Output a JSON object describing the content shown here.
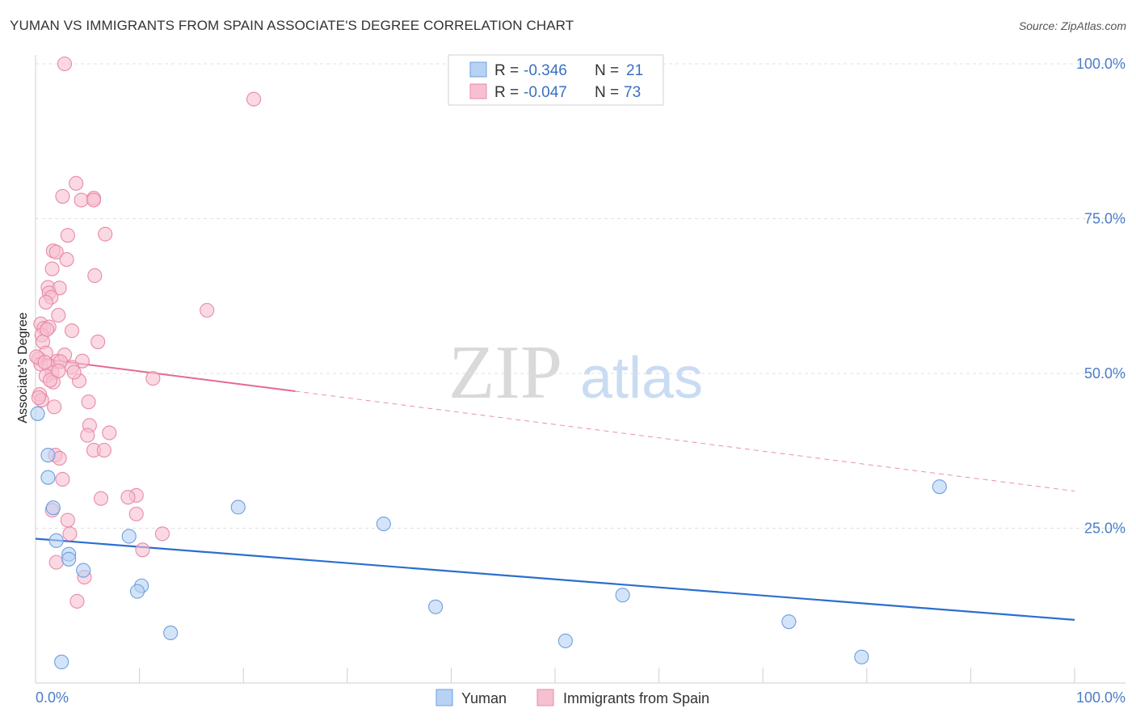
{
  "header": {
    "title": "YUMAN VS IMMIGRANTS FROM SPAIN ASSOCIATE'S DEGREE CORRELATION CHART",
    "source": "Source: ZipAtlas.com"
  },
  "watermark": {
    "zip": "ZIP",
    "atlas": "atlas"
  },
  "colors": {
    "blue_fill": "#b8d2f4",
    "blue_stroke": "#6d9fdf",
    "blue_line": "#2b6fcd",
    "pink_fill": "#f7c0d1",
    "pink_stroke": "#e88aa8",
    "pink_line": "#e46a93",
    "grid": "#e0e0e0",
    "axis": "#cfcfcf"
  },
  "chart_data": {
    "type": "scatter",
    "title": "YUMAN VS IMMIGRANTS FROM SPAIN ASSOCIATE'S DEGREE CORRELATION CHART",
    "xlabel": "",
    "ylabel": "Associate's Degree",
    "xlim": [
      0,
      100
    ],
    "ylim": [
      0,
      100
    ],
    "x_tick_labels": {
      "min": "0.0%",
      "max": "100.0%"
    },
    "y_ticks": [
      {
        "value": 25,
        "label": "25.0%"
      },
      {
        "value": 50,
        "label": "50.0%"
      },
      {
        "value": 75,
        "label": "75.0%"
      },
      {
        "value": 100,
        "label": "100.0%"
      }
    ],
    "grid": true,
    "legend": {
      "position": "top-center",
      "entries": [
        {
          "r_label": "R = ",
          "r_value": "-0.346",
          "n_label": "N = ",
          "n_value": "21"
        },
        {
          "r_label": "R = ",
          "r_value": "-0.047",
          "n_label": "N = ",
          "n_value": "73"
        }
      ]
    },
    "series": [
      {
        "name": "Yuman",
        "color": "#b8d2f4",
        "trend": {
          "x0": 0,
          "y0": 23.3,
          "x1": 100,
          "y1": 10.2,
          "solid_until": 100
        },
        "points": [
          [
            0.2,
            43.5
          ],
          [
            1.2,
            36.8
          ],
          [
            1.2,
            33.2
          ],
          [
            1.7,
            28.3
          ],
          [
            2.0,
            23.0
          ],
          [
            3.2,
            20.8
          ],
          [
            3.2,
            20.0
          ],
          [
            4.6,
            18.2
          ],
          [
            2.5,
            3.4
          ],
          [
            9.0,
            23.7
          ],
          [
            10.2,
            15.7
          ],
          [
            9.8,
            14.8
          ],
          [
            13.0,
            8.1
          ],
          [
            19.5,
            28.4
          ],
          [
            33.5,
            25.7
          ],
          [
            38.5,
            12.3
          ],
          [
            51.0,
            6.8
          ],
          [
            56.5,
            14.2
          ],
          [
            72.5,
            9.9
          ],
          [
            79.5,
            4.2
          ],
          [
            87.0,
            31.7
          ]
        ]
      },
      {
        "name": "Immigrants from Spain",
        "color": "#f7c0d1",
        "trend": {
          "x0": 0,
          "y0": 52.5,
          "x1": 100,
          "y1": 31.0,
          "solid_until": 25
        },
        "points": [
          [
            2.8,
            100.0
          ],
          [
            21.0,
            94.3
          ],
          [
            3.9,
            80.7
          ],
          [
            2.6,
            78.6
          ],
          [
            4.4,
            78.0
          ],
          [
            5.6,
            78.3
          ],
          [
            5.6,
            78.0
          ],
          [
            3.1,
            72.3
          ],
          [
            6.7,
            72.5
          ],
          [
            1.7,
            69.8
          ],
          [
            2.0,
            69.6
          ],
          [
            3.0,
            68.4
          ],
          [
            1.6,
            66.9
          ],
          [
            5.7,
            65.8
          ],
          [
            1.2,
            63.9
          ],
          [
            2.3,
            63.8
          ],
          [
            1.3,
            63.0
          ],
          [
            1.5,
            62.3
          ],
          [
            1.0,
            61.5
          ],
          [
            16.5,
            60.2
          ],
          [
            2.2,
            59.4
          ],
          [
            0.5,
            58.0
          ],
          [
            0.8,
            57.3
          ],
          [
            1.3,
            57.5
          ],
          [
            3.5,
            56.9
          ],
          [
            0.6,
            56.2
          ],
          [
            0.7,
            55.1
          ],
          [
            6.0,
            55.1
          ],
          [
            2.1,
            52.0
          ],
          [
            2.8,
            53.0
          ],
          [
            1.0,
            53.3
          ],
          [
            0.3,
            52.4
          ],
          [
            0.5,
            51.5
          ],
          [
            1.3,
            51.3
          ],
          [
            2.4,
            51.9
          ],
          [
            4.5,
            52.0
          ],
          [
            3.5,
            51.0
          ],
          [
            1.6,
            50.1
          ],
          [
            1.0,
            49.6
          ],
          [
            11.3,
            49.2
          ],
          [
            1.7,
            48.6
          ],
          [
            4.2,
            48.8
          ],
          [
            0.4,
            46.6
          ],
          [
            0.6,
            45.7
          ],
          [
            5.1,
            45.4
          ],
          [
            1.8,
            44.6
          ],
          [
            5.2,
            41.6
          ],
          [
            7.1,
            40.4
          ],
          [
            5.0,
            40.0
          ],
          [
            5.6,
            37.6
          ],
          [
            6.6,
            37.6
          ],
          [
            1.9,
            36.8
          ],
          [
            2.3,
            36.3
          ],
          [
            2.6,
            32.9
          ],
          [
            9.7,
            30.3
          ],
          [
            6.3,
            29.8
          ],
          [
            8.9,
            30.0
          ],
          [
            1.6,
            27.9
          ],
          [
            3.1,
            26.3
          ],
          [
            9.7,
            27.3
          ],
          [
            3.3,
            24.1
          ],
          [
            12.2,
            24.1
          ],
          [
            10.3,
            21.5
          ],
          [
            2.0,
            19.5
          ],
          [
            4.7,
            17.1
          ],
          [
            4.0,
            13.2
          ],
          [
            0.1,
            52.7
          ],
          [
            1.4,
            48.9
          ],
          [
            0.9,
            51.8
          ],
          [
            2.2,
            50.4
          ],
          [
            1.1,
            57.1
          ],
          [
            3.7,
            50.2
          ],
          [
            0.3,
            46.1
          ]
        ]
      }
    ]
  }
}
